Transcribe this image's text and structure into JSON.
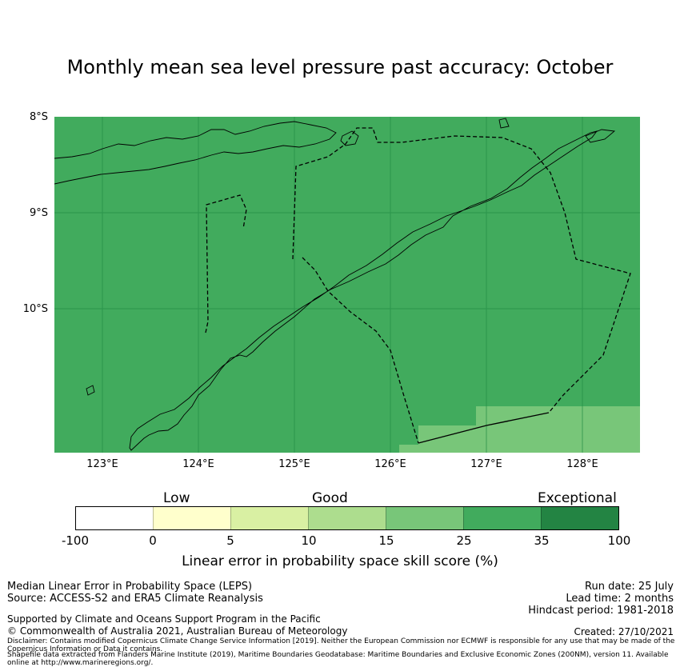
{
  "title": "Monthly mean sea level pressure past accuracy: October",
  "map": {
    "lat_labels": [
      "8°S",
      "9°S",
      "10°S"
    ],
    "lon_labels": [
      "123°E",
      "124°E",
      "125°E",
      "126°E",
      "127°E",
      "128°E"
    ],
    "colors": {
      "ocean_skill": "#41ab5d",
      "lighter_skill": "#78c679",
      "gridline": "#238b45",
      "coast": "#000000"
    }
  },
  "legend": {
    "categories": [
      "Low",
      "Good",
      "Exceptional"
    ],
    "ticks": [
      "-100",
      "0",
      "5",
      "10",
      "15",
      "25",
      "35",
      "100"
    ],
    "colors": [
      "#ffffff",
      "#ffffcc",
      "#d9f0a3",
      "#addd8e",
      "#78c679",
      "#41ab5d",
      "#238443"
    ],
    "label": "Linear error in probability space skill score (%)"
  },
  "footer": {
    "line1": "Median Linear Error in Probability Space (LEPS)",
    "line2": "Source: ACCESS-S2 and ERA5 Climate Reanalysis",
    "run_date": "Run date: 25 July",
    "lead_time": "Lead time: 2 months",
    "hindcast": "Hindcast period: 1981-2018",
    "support": "Supported by Climate and Oceans Support Program in the Pacific",
    "copyright": "© Commonwealth of Australia 2021, Australian Bureau of Meteorology",
    "created": "Created: 27/10/2021",
    "disclaimer": "Disclaimer: Contains modified Copernicus Climate Change Service Information [2019]. Neither the European Commission nor ECMWF is responsible for any use that may be made of the Copernicus Information or Data it contains.",
    "shapefile": "Shapefile data extracted from Flanders Marine Institute (2019), Maritime Boundaries Geodatabase: Maritime Boundaries and Exclusive Economic Zones (200NM), version 11. Available online at http://www.marineregions.org/."
  }
}
